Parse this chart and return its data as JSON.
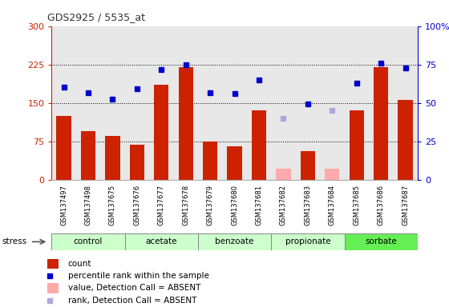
{
  "title": "GDS2925 / 5535_at",
  "samples": [
    "GSM137497",
    "GSM137498",
    "GSM137675",
    "GSM137676",
    "GSM137677",
    "GSM137678",
    "GSM137679",
    "GSM137680",
    "GSM137681",
    "GSM137682",
    "GSM137683",
    "GSM137684",
    "GSM137685",
    "GSM137686",
    "GSM137687"
  ],
  "groups": [
    {
      "name": "control",
      "indices": [
        0,
        1,
        2
      ],
      "color": "#ccffcc"
    },
    {
      "name": "acetate",
      "indices": [
        3,
        4,
        5
      ],
      "color": "#ccffcc"
    },
    {
      "name": "benzoate",
      "indices": [
        6,
        7,
        8
      ],
      "color": "#ccffcc"
    },
    {
      "name": "propionate",
      "indices": [
        9,
        10,
        11
      ],
      "color": "#ccffcc"
    },
    {
      "name": "sorbate",
      "indices": [
        12,
        13,
        14
      ],
      "color": "#66ee55"
    }
  ],
  "count_values": [
    125,
    95,
    85,
    68,
    185,
    220,
    75,
    65,
    135,
    20,
    55,
    20,
    135,
    220,
    155
  ],
  "rank_values": [
    180,
    170,
    158,
    178,
    215,
    225,
    170,
    168,
    195,
    null,
    148,
    null,
    188,
    228,
    218
  ],
  "absent_count": [
    null,
    null,
    null,
    null,
    null,
    null,
    null,
    null,
    null,
    22,
    null,
    22,
    null,
    null,
    null
  ],
  "absent_rank": [
    null,
    null,
    null,
    null,
    null,
    null,
    null,
    null,
    null,
    120,
    null,
    135,
    null,
    null,
    null
  ],
  "left_ylim": [
    0,
    300
  ],
  "right_ylim": [
    0,
    100
  ],
  "left_yticks": [
    0,
    75,
    150,
    225,
    300
  ],
  "right_yticks": [
    0,
    25,
    50,
    75,
    100
  ],
  "bar_color": "#cc2200",
  "rank_color": "#0000cc",
  "absent_count_color": "#ffaaaa",
  "absent_rank_color": "#aaaadd",
  "bg_color": "#e8e8e8",
  "left_axis_color": "#cc2200",
  "right_axis_color": "#0000cc",
  "figsize": [
    5.6,
    3.84
  ],
  "dpi": 100
}
